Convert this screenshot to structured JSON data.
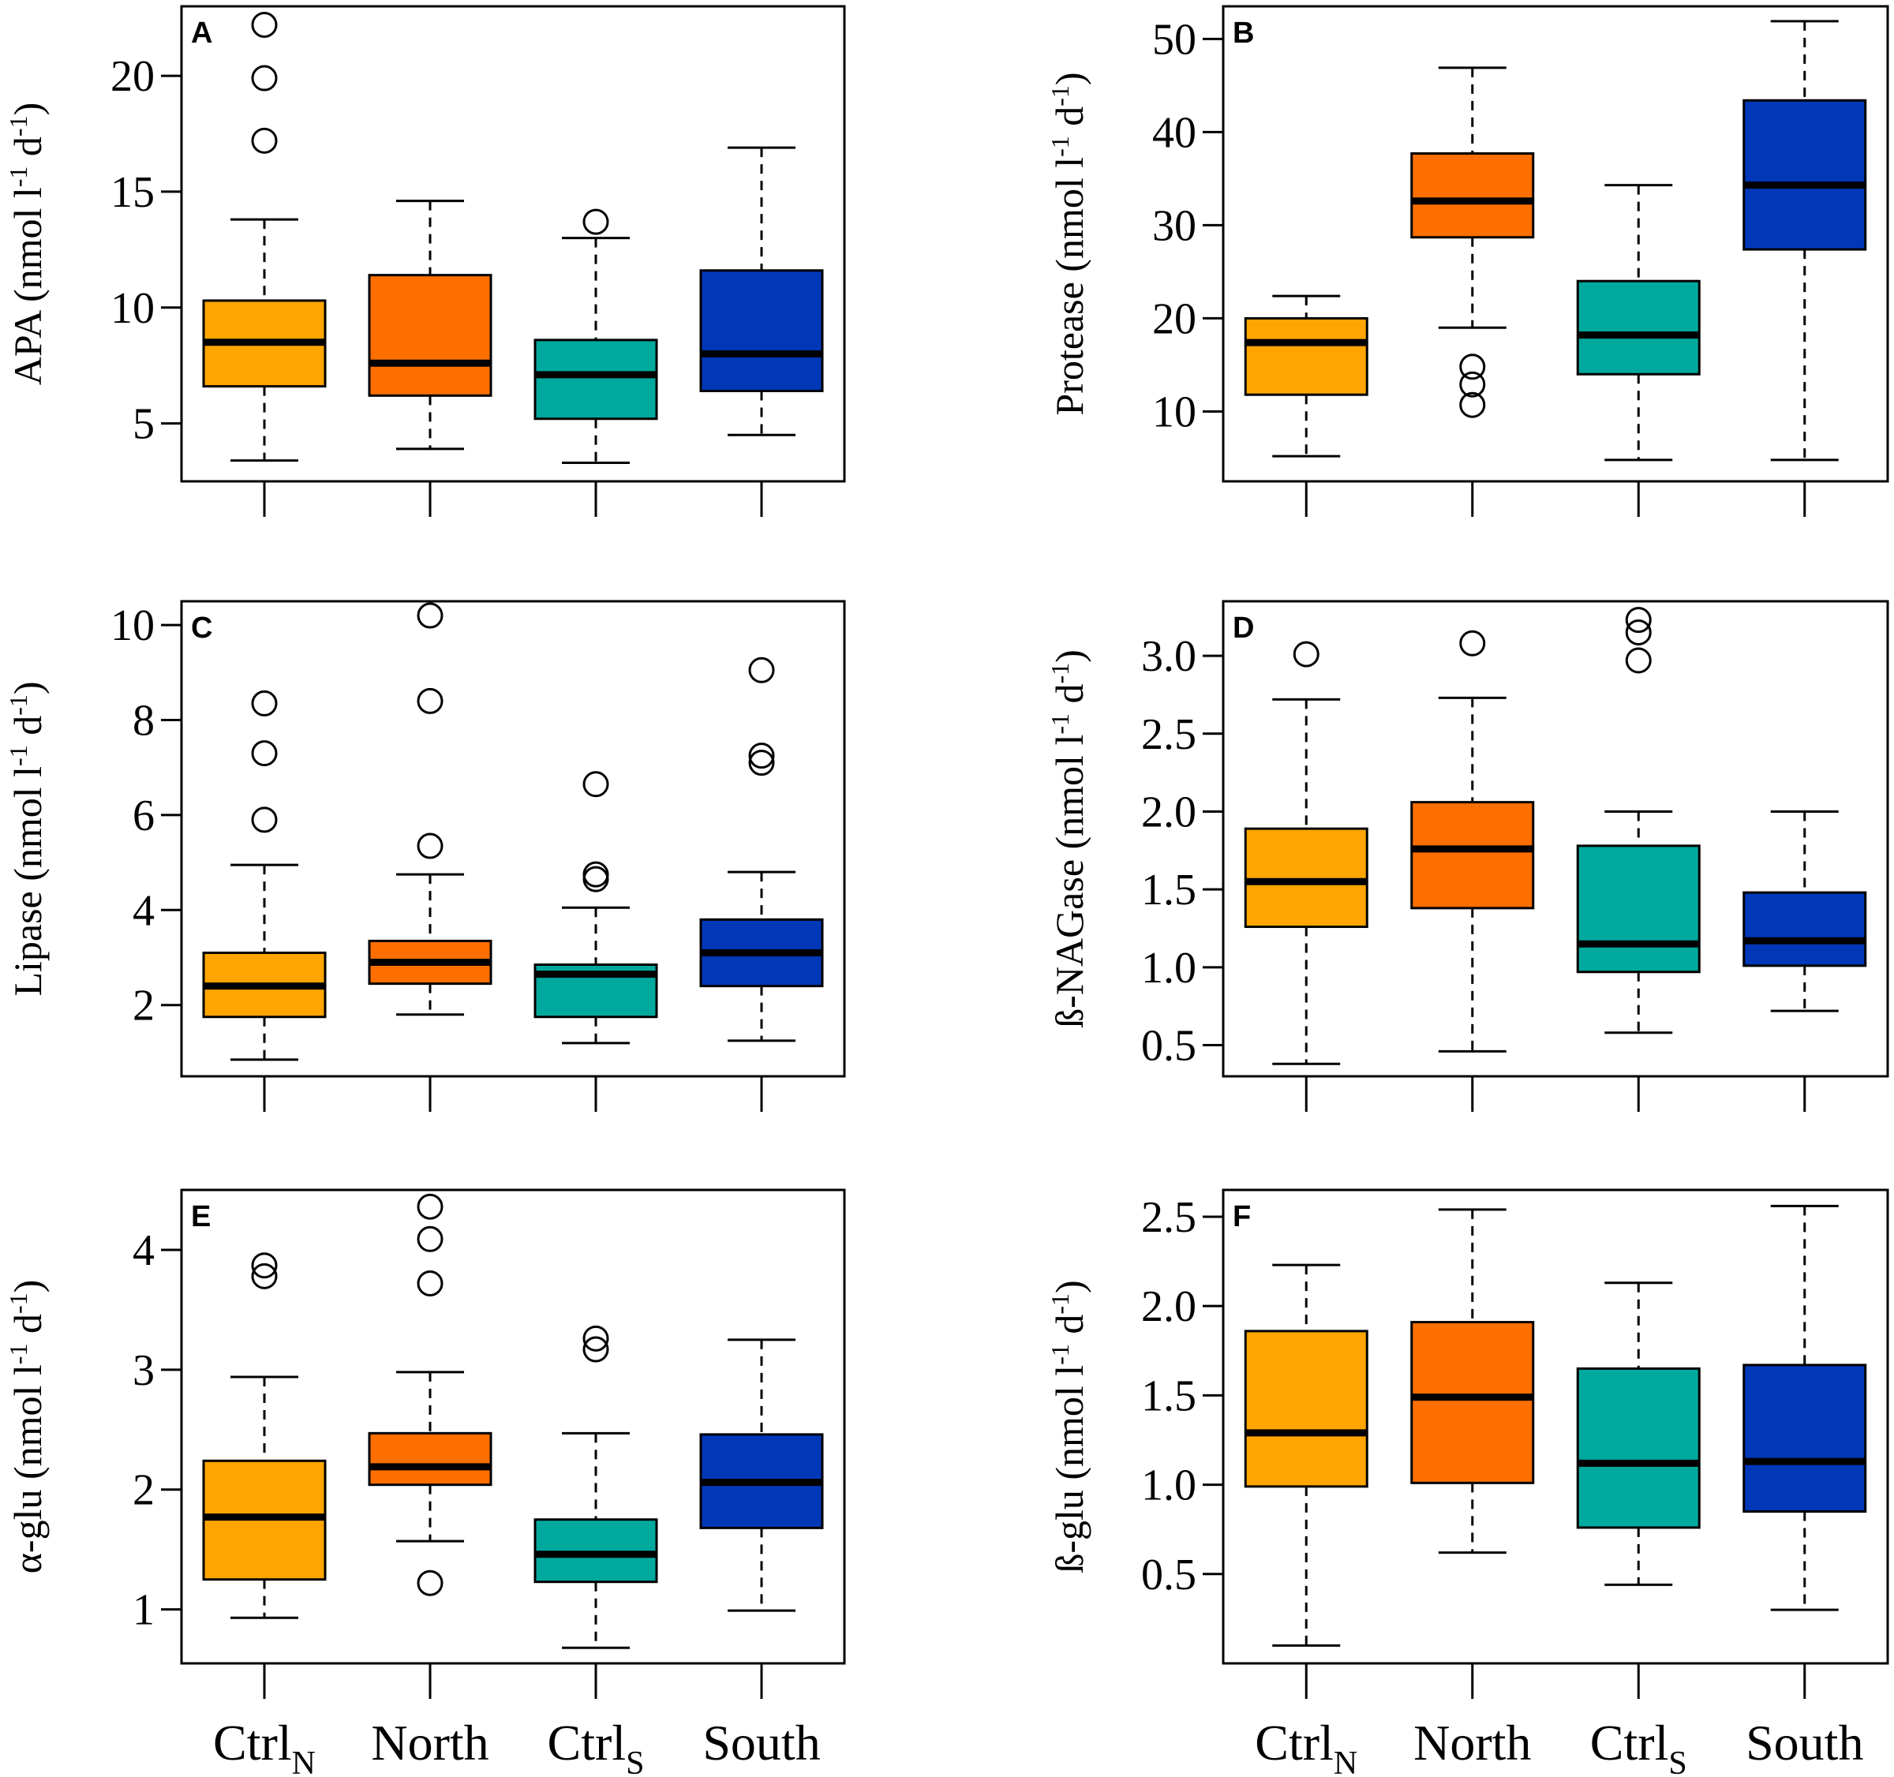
{
  "figure": {
    "colors": [
      "#FFA500",
      "#FF6F00",
      "#00A99D",
      "#0038B8"
    ],
    "x_categories": [
      {
        "base": "Ctrl",
        "sub": "N"
      },
      {
        "base": "North",
        "sub": ""
      },
      {
        "base": "Ctrl",
        "sub": "S"
      },
      {
        "base": "South",
        "sub": ""
      }
    ]
  },
  "chart_data": [
    {
      "type": "box",
      "panel": "A",
      "ylabel": "APA (nmol l-1 d-1)",
      "ylabel_main": "APA (nmol l",
      "ylim": [
        2.5,
        23
      ],
      "yticks": [
        5,
        10,
        15,
        20
      ],
      "ytick_labels": [
        "5",
        "10",
        "15",
        "20"
      ],
      "boxes": [
        {
          "group": "CtrlN",
          "whisker_low": 3.4,
          "q1": 6.6,
          "median": 8.5,
          "q3": 10.3,
          "whisker_high": 13.8,
          "outliers": [
            17.2,
            19.9,
            22.2
          ]
        },
        {
          "group": "North",
          "whisker_low": 3.9,
          "q1": 6.2,
          "median": 7.6,
          "q3": 11.4,
          "whisker_high": 14.6,
          "outliers": []
        },
        {
          "group": "CtrlS",
          "whisker_low": 3.3,
          "q1": 5.2,
          "median": 7.1,
          "q3": 8.6,
          "whisker_high": 13.0,
          "outliers": [
            13.7
          ]
        },
        {
          "group": "South",
          "whisker_low": 4.5,
          "q1": 6.4,
          "median": 8.0,
          "q3": 11.6,
          "whisker_high": 16.9,
          "outliers": []
        }
      ]
    },
    {
      "type": "box",
      "panel": "B",
      "ylabel": "Protease (nmol l-1 d-1)",
      "ylabel_main": "Protease (nmol l",
      "ylim": [
        2.5,
        53.5
      ],
      "yticks": [
        10,
        20,
        30,
        40,
        50
      ],
      "ytick_labels": [
        "10",
        "20",
        "30",
        "40",
        "50"
      ],
      "boxes": [
        {
          "group": "CtrlN",
          "whisker_low": 5.2,
          "q1": 11.8,
          "median": 17.4,
          "q3": 20.0,
          "whisker_high": 22.4,
          "outliers": []
        },
        {
          "group": "North",
          "whisker_low": 19.0,
          "q1": 28.7,
          "median": 32.6,
          "q3": 37.7,
          "whisker_high": 46.9,
          "outliers": [
            10.7,
            12.9,
            14.8
          ]
        },
        {
          "group": "CtrlS",
          "whisker_low": 4.8,
          "q1": 14.0,
          "median": 18.2,
          "q3": 24.0,
          "whisker_high": 34.3,
          "outliers": []
        },
        {
          "group": "South",
          "whisker_low": 4.8,
          "q1": 27.4,
          "median": 34.3,
          "q3": 43.4,
          "whisker_high": 51.9,
          "outliers": []
        }
      ]
    },
    {
      "type": "box",
      "panel": "C",
      "ylabel": "Lipase (nmol l-1 d-1)",
      "ylabel_main": "Lipase (nmol l",
      "ylim": [
        0.5,
        10.5
      ],
      "yticks": [
        2,
        4,
        6,
        8,
        10
      ],
      "ytick_labels": [
        "2",
        "4",
        "6",
        "8",
        "10"
      ],
      "boxes": [
        {
          "group": "CtrlN",
          "whisker_low": 0.85,
          "q1": 1.75,
          "median": 2.4,
          "q3": 3.1,
          "whisker_high": 4.95,
          "outliers": [
            5.9,
            7.3,
            8.35
          ]
        },
        {
          "group": "North",
          "whisker_low": 1.8,
          "q1": 2.45,
          "median": 2.9,
          "q3": 3.35,
          "whisker_high": 4.75,
          "outliers": [
            5.35,
            8.4,
            10.2
          ]
        },
        {
          "group": "CtrlS",
          "whisker_low": 1.2,
          "q1": 1.75,
          "median": 2.65,
          "q3": 2.85,
          "whisker_high": 4.05,
          "outliers": [
            4.65,
            4.75,
            6.65
          ]
        },
        {
          "group": "South",
          "whisker_low": 1.25,
          "q1": 2.4,
          "median": 3.1,
          "q3": 3.8,
          "whisker_high": 4.8,
          "outliers": [
            7.1,
            7.25,
            9.05
          ]
        }
      ]
    },
    {
      "type": "box",
      "panel": "D",
      "ylabel": "ß-NAGase (nmol l-1 d-1)",
      "ylabel_main": "ß-NAGase (nmol l",
      "ylim": [
        0.3,
        3.35
      ],
      "yticks": [
        0.5,
        1.0,
        1.5,
        2.0,
        2.5,
        3.0
      ],
      "ytick_labels": [
        "0.5",
        "1.0",
        "1.5",
        "2.0",
        "2.5",
        "3.0"
      ],
      "boxes": [
        {
          "group": "CtrlN",
          "whisker_low": 0.38,
          "q1": 1.26,
          "median": 1.55,
          "q3": 1.89,
          "whisker_high": 2.72,
          "outliers": [
            3.01
          ]
        },
        {
          "group": "North",
          "whisker_low": 0.46,
          "q1": 1.38,
          "median": 1.76,
          "q3": 2.06,
          "whisker_high": 2.73,
          "outliers": [
            3.08
          ]
        },
        {
          "group": "CtrlS",
          "whisker_low": 0.58,
          "q1": 0.97,
          "median": 1.15,
          "q3": 1.78,
          "whisker_high": 2.0,
          "outliers": [
            2.97,
            3.15,
            3.23
          ]
        },
        {
          "group": "South",
          "whisker_low": 0.72,
          "q1": 1.01,
          "median": 1.17,
          "q3": 1.48,
          "whisker_high": 2.0,
          "outliers": []
        }
      ]
    },
    {
      "type": "box",
      "panel": "E",
      "ylabel": "α-glu (nmol l-1 d-1)",
      "ylabel_main": "α-glu (nmol l",
      "ylim": [
        0.55,
        4.5
      ],
      "yticks": [
        1,
        2,
        3,
        4
      ],
      "ytick_labels": [
        "1",
        "2",
        "3",
        "4"
      ],
      "boxes": [
        {
          "group": "CtrlN",
          "whisker_low": 0.93,
          "q1": 1.25,
          "median": 1.77,
          "q3": 2.24,
          "whisker_high": 2.94,
          "outliers": [
            3.78,
            3.87
          ]
        },
        {
          "group": "North",
          "whisker_low": 1.57,
          "q1": 2.04,
          "median": 2.19,
          "q3": 2.47,
          "whisker_high": 2.98,
          "outliers": [
            1.22,
            3.72,
            4.09,
            4.36
          ]
        },
        {
          "group": "CtrlS",
          "whisker_low": 0.68,
          "q1": 1.23,
          "median": 1.46,
          "q3": 1.75,
          "whisker_high": 2.47,
          "outliers": [
            3.17,
            3.26
          ]
        },
        {
          "group": "South",
          "whisker_low": 0.99,
          "q1": 1.68,
          "median": 2.06,
          "q3": 2.46,
          "whisker_high": 3.25,
          "outliers": []
        }
      ]
    },
    {
      "type": "box",
      "panel": "F",
      "ylabel": "ß-glu (nmol l-1 d-1)",
      "ylabel_main": "ß-glu (nmol l",
      "ylim": [
        0.0,
        2.65
      ],
      "yticks": [
        0.5,
        1.0,
        1.5,
        2.0,
        2.5
      ],
      "ytick_labels": [
        "0.5",
        "1.0",
        "1.5",
        "2.0",
        "2.5"
      ],
      "boxes": [
        {
          "group": "CtrlN",
          "whisker_low": 0.1,
          "q1": 0.99,
          "median": 1.29,
          "q3": 1.86,
          "whisker_high": 2.23,
          "outliers": []
        },
        {
          "group": "North",
          "whisker_low": 0.62,
          "q1": 1.01,
          "median": 1.49,
          "q3": 1.91,
          "whisker_high": 2.54,
          "outliers": []
        },
        {
          "group": "CtrlS",
          "whisker_low": 0.44,
          "q1": 0.76,
          "median": 1.12,
          "q3": 1.65,
          "whisker_high": 2.13,
          "outliers": []
        },
        {
          "group": "South",
          "whisker_low": 0.3,
          "q1": 0.85,
          "median": 1.13,
          "q3": 1.67,
          "whisker_high": 2.56,
          "outliers": []
        }
      ]
    }
  ]
}
